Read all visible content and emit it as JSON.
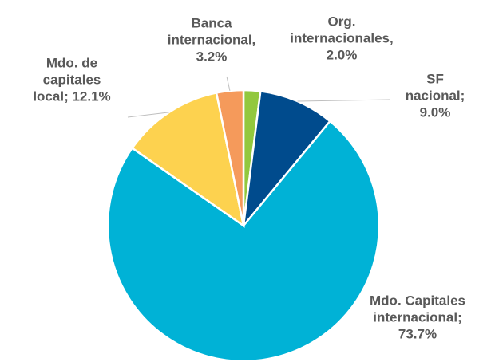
{
  "chart_data": {
    "type": "pie",
    "categories": [
      "Org. internacionales,",
      "SF nacional;",
      "Mdo. Capitales internacional;",
      "Mdo. de capitales local;",
      "Banca internacional,"
    ],
    "values": [
      2.0,
      9.0,
      73.7,
      12.1,
      3.2
    ],
    "value_labels": [
      "2.0%",
      "9.0%",
      "73.7%",
      "12.1%",
      "3.2%"
    ],
    "colors": [
      "#92c83e",
      "#004b8d",
      "#00b2d6",
      "#fdd24f",
      "#f59a5b"
    ]
  }
}
